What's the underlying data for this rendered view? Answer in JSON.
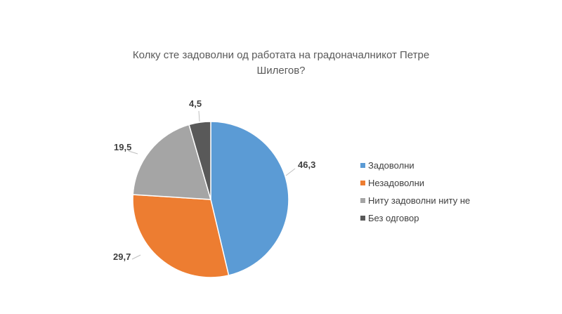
{
  "chart_data": {
    "type": "pie",
    "title_line1": "Колку сте задоволни од работата на градоначалникот Петре",
    "title_line2": "Шилегов?",
    "categories": [
      "Задоволни",
      "Незадоволни",
      "Ниту задоволни ниту не",
      "Без одговор"
    ],
    "values": [
      46.3,
      29.7,
      19.5,
      4.5
    ],
    "data_labels": [
      "46,3",
      "29,7",
      "19,5",
      "4,5"
    ],
    "colors": [
      "#5b9bd5",
      "#ed7d31",
      "#a5a5a5",
      "#595959"
    ],
    "legend_position": "right",
    "start_angle": "12 o'clock, clockwise"
  }
}
